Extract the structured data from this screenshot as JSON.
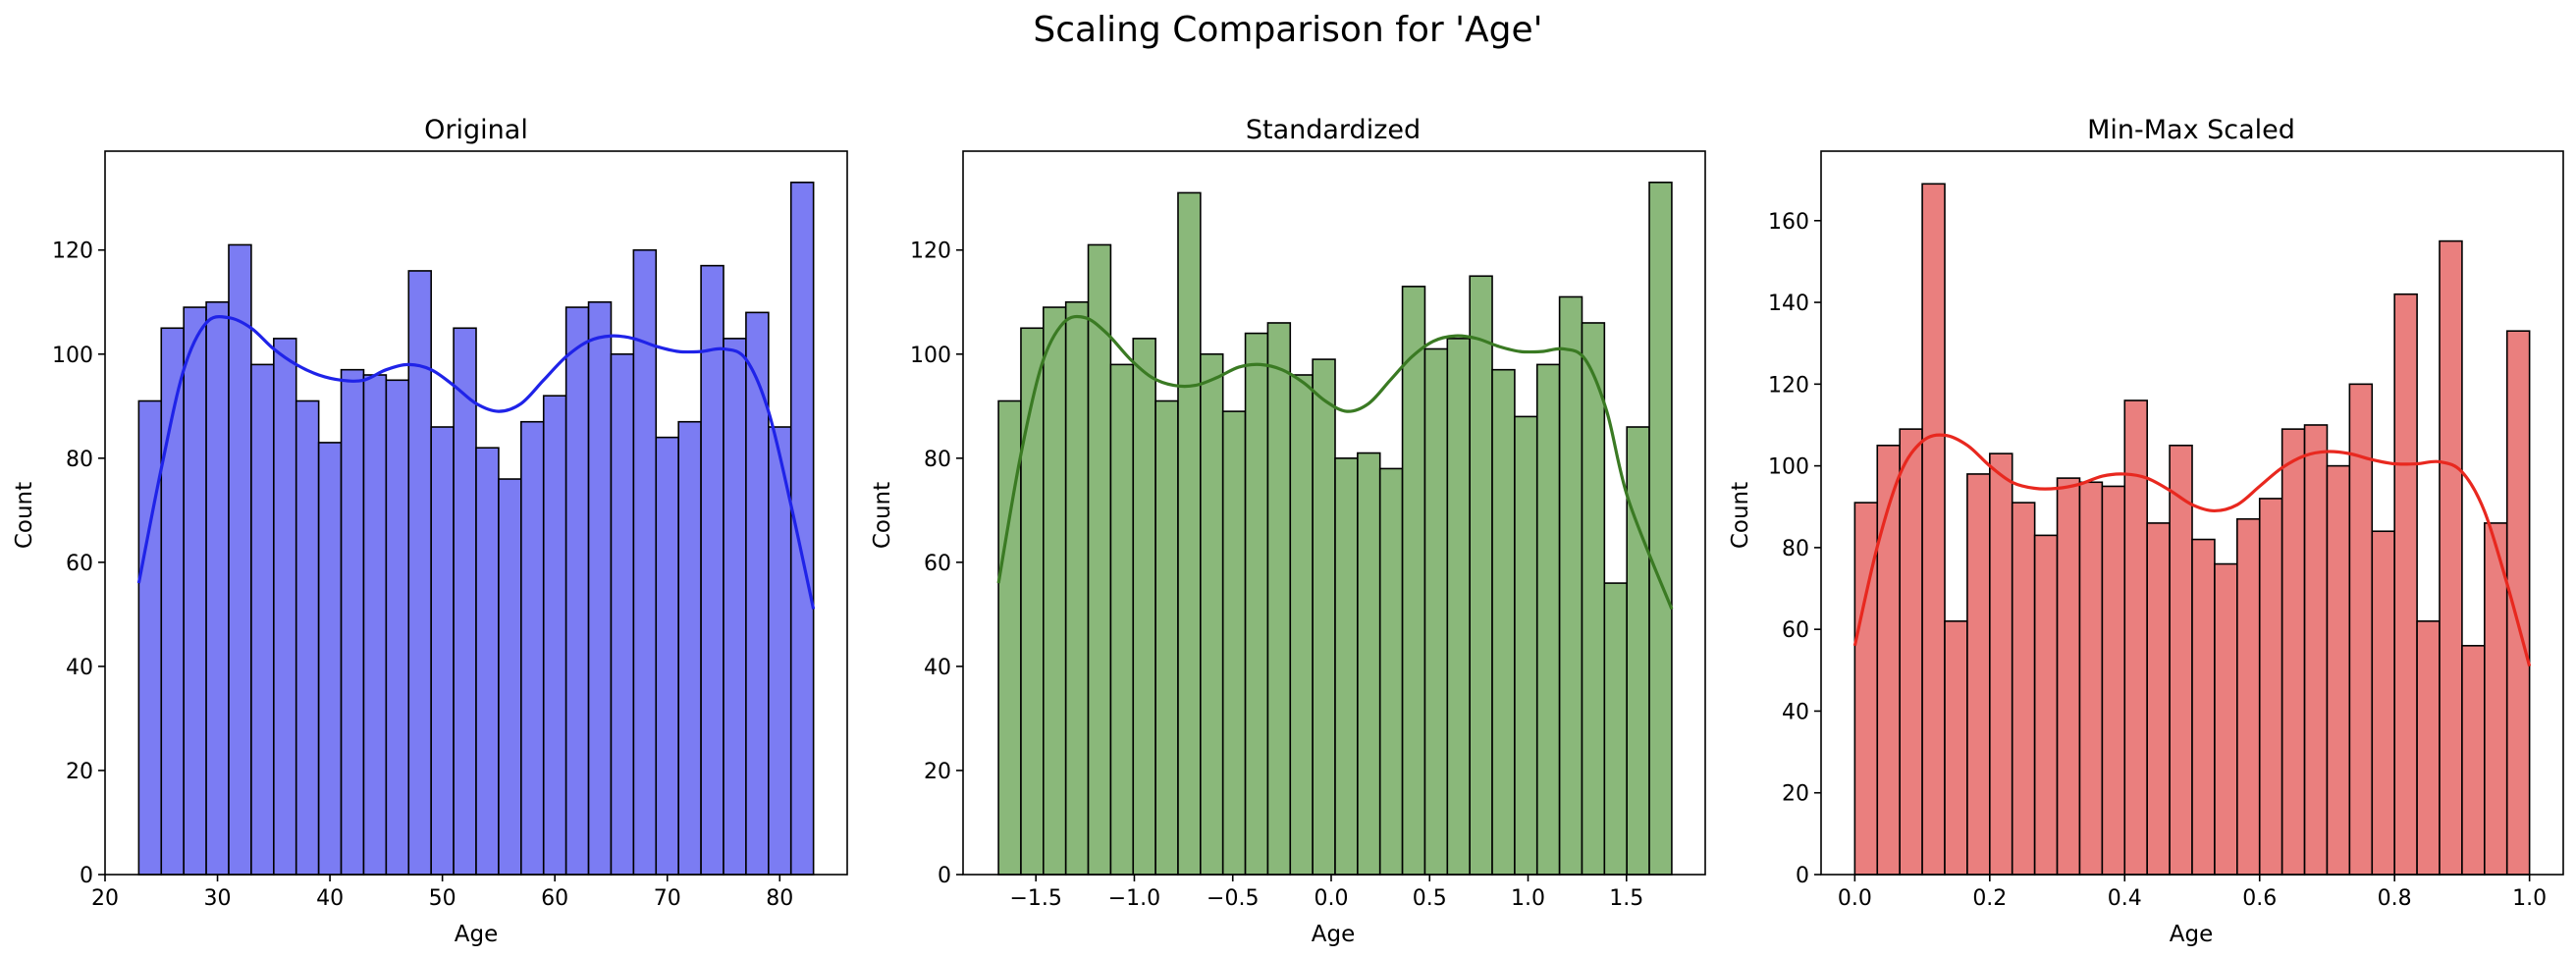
{
  "figure": {
    "suptitle": "Scaling Comparison for 'Age'"
  },
  "chart_data": [
    {
      "type": "bar",
      "subtype": "histogram-with-kde",
      "title": "Original",
      "xlabel": "Age",
      "ylabel": "Count",
      "xlim": [
        20,
        86
      ],
      "ylim": [
        0,
        139
      ],
      "bins_start": 23,
      "bins_end": 83,
      "xticks": [
        20,
        30,
        40,
        50,
        60,
        70,
        80
      ],
      "xtick_labels": [
        "20",
        "30",
        "40",
        "50",
        "60",
        "70",
        "80"
      ],
      "yticks": [
        0,
        20,
        40,
        60,
        80,
        100,
        120
      ],
      "ytick_labels": [
        "0",
        "20",
        "40",
        "60",
        "80",
        "100",
        "120"
      ],
      "values": [
        91,
        105,
        109,
        110,
        121,
        98,
        103,
        91,
        83,
        97,
        96,
        95,
        116,
        86,
        105,
        82,
        76,
        87,
        92,
        109,
        110,
        100,
        120,
        84,
        87,
        117,
        103,
        108,
        86,
        133
      ],
      "kde": [
        [
          23,
          56
        ],
        [
          25,
          78
        ],
        [
          27,
          97
        ],
        [
          29,
          106
        ],
        [
          31,
          107
        ],
        [
          33,
          105
        ],
        [
          35,
          101
        ],
        [
          37,
          98
        ],
        [
          39,
          96
        ],
        [
          41,
          95
        ],
        [
          43,
          95
        ],
        [
          45,
          97
        ],
        [
          47,
          98
        ],
        [
          49,
          97
        ],
        [
          51,
          94
        ],
        [
          53,
          90.5
        ],
        [
          55,
          89
        ],
        [
          57,
          90.5
        ],
        [
          59,
          95
        ],
        [
          61,
          99.5
        ],
        [
          63,
          102.5
        ],
        [
          65,
          103.5
        ],
        [
          67,
          103
        ],
        [
          69,
          101.5
        ],
        [
          71,
          100.5
        ],
        [
          73,
          100.5
        ],
        [
          75,
          101
        ],
        [
          77,
          99
        ],
        [
          79,
          89
        ],
        [
          81,
          71
        ],
        [
          83,
          51
        ]
      ],
      "colors": {
        "bar": "#7b7cf3",
        "line": "#1f23e8"
      }
    },
    {
      "type": "bar",
      "subtype": "histogram-with-kde",
      "title": "Standardized",
      "xlabel": "Age",
      "ylabel": "Count",
      "xlim": [
        -1.87,
        1.9
      ],
      "ylim": [
        0,
        139
      ],
      "bins_start": -1.69,
      "bins_end": 1.73,
      "xticks": [
        -1.5,
        -1.0,
        -0.5,
        0.0,
        0.5,
        1.0,
        1.5
      ],
      "xtick_labels": [
        "−1.5",
        "−1.0",
        "−0.5",
        "0.0",
        "0.5",
        "1.0",
        "1.5"
      ],
      "yticks": [
        0,
        20,
        40,
        60,
        80,
        100,
        120
      ],
      "ytick_labels": [
        "0",
        "20",
        "40",
        "60",
        "80",
        "100",
        "120"
      ],
      "values": [
        91,
        105,
        109,
        110,
        121,
        98,
        103,
        91,
        131,
        100,
        89,
        104,
        106,
        96,
        99,
        80,
        81,
        78,
        113,
        101,
        103,
        115,
        97,
        88,
        98,
        111,
        106,
        56,
        86,
        133
      ],
      "kde": [
        [
          -1.69,
          56
        ],
        [
          -1.58,
          80
        ],
        [
          -1.47,
          98
        ],
        [
          -1.36,
          106
        ],
        [
          -1.25,
          107
        ],
        [
          -1.14,
          104
        ],
        [
          -1.02,
          99
        ],
        [
          -0.91,
          95.5
        ],
        [
          -0.8,
          94
        ],
        [
          -0.69,
          94
        ],
        [
          -0.58,
          95.5
        ],
        [
          -0.47,
          97.5
        ],
        [
          -0.36,
          98
        ],
        [
          -0.25,
          97
        ],
        [
          -0.14,
          94.5
        ],
        [
          -0.03,
          91
        ],
        [
          0.08,
          89
        ],
        [
          0.19,
          90.5
        ],
        [
          0.3,
          95
        ],
        [
          0.41,
          99.5
        ],
        [
          0.52,
          102.5
        ],
        [
          0.63,
          103.5
        ],
        [
          0.74,
          103
        ],
        [
          0.85,
          101.5
        ],
        [
          0.96,
          100.5
        ],
        [
          1.07,
          100.5
        ],
        [
          1.18,
          101
        ],
        [
          1.29,
          99
        ],
        [
          1.4,
          89
        ],
        [
          1.51,
          72
        ],
        [
          1.73,
          51
        ]
      ],
      "colors": {
        "bar": "#8ab87a",
        "line": "#3a7a23"
      }
    },
    {
      "type": "bar",
      "subtype": "histogram-with-kde",
      "title": "Min-Max Scaled",
      "xlabel": "Age",
      "ylabel": "Count",
      "xlim": [
        -0.05,
        1.05
      ],
      "ylim": [
        0,
        177
      ],
      "bins_start": 0.0,
      "bins_end": 1.0,
      "xticks": [
        0.0,
        0.2,
        0.4,
        0.6,
        0.8,
        1.0
      ],
      "xtick_labels": [
        "0.0",
        "0.2",
        "0.4",
        "0.6",
        "0.8",
        "1.0"
      ],
      "yticks": [
        0,
        20,
        40,
        60,
        80,
        100,
        120,
        140,
        160
      ],
      "ytick_labels": [
        "0",
        "20",
        "40",
        "60",
        "80",
        "100",
        "120",
        "140",
        "160"
      ],
      "values": [
        91,
        105,
        109,
        169,
        62,
        98,
        103,
        91,
        83,
        97,
        96,
        95,
        116,
        86,
        105,
        82,
        76,
        87,
        92,
        109,
        110,
        100,
        120,
        84,
        142,
        62,
        155,
        56,
        86,
        133
      ],
      "kde": [
        [
          0.0,
          56
        ],
        [
          0.033,
          80
        ],
        [
          0.067,
          98
        ],
        [
          0.1,
          106
        ],
        [
          0.133,
          107.5
        ],
        [
          0.167,
          105
        ],
        [
          0.2,
          100
        ],
        [
          0.233,
          96
        ],
        [
          0.267,
          94.5
        ],
        [
          0.3,
          94.5
        ],
        [
          0.333,
          95.5
        ],
        [
          0.367,
          97.5
        ],
        [
          0.4,
          98
        ],
        [
          0.433,
          97
        ],
        [
          0.467,
          94
        ],
        [
          0.5,
          90.5
        ],
        [
          0.533,
          89
        ],
        [
          0.567,
          90.5
        ],
        [
          0.6,
          95
        ],
        [
          0.633,
          99.5
        ],
        [
          0.667,
          102.5
        ],
        [
          0.7,
          103.5
        ],
        [
          0.733,
          103
        ],
        [
          0.767,
          101.5
        ],
        [
          0.8,
          100.5
        ],
        [
          0.833,
          100.5
        ],
        [
          0.867,
          101
        ],
        [
          0.9,
          98.5
        ],
        [
          0.933,
          89
        ],
        [
          0.967,
          71
        ],
        [
          1.0,
          51
        ]
      ],
      "colors": {
        "bar": "#ea7f7e",
        "line": "#e8281f"
      }
    }
  ]
}
